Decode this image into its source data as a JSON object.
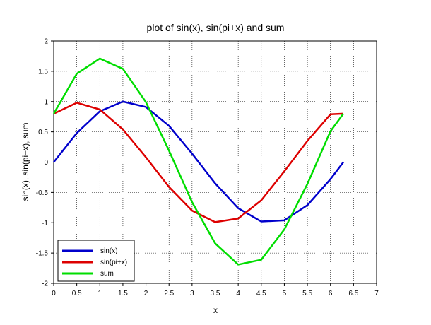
{
  "chart_data": {
    "type": "line",
    "title": "plot of sin(x), sin(pi+x) and sum",
    "xlabel": "x",
    "ylabel": "sin(x), sin(pi+x), sum",
    "xlim": [
      0,
      7
    ],
    "ylim": [
      -2,
      2
    ],
    "grid": true,
    "legend_placement": "bottom-left",
    "x_ticks": [
      "0",
      "0.5",
      "1",
      "1.5",
      "2",
      "2.5",
      "3",
      "3.5",
      "4",
      "4.5",
      "5",
      "5.5",
      "6",
      "6.5",
      "7"
    ],
    "y_ticks": [
      "-2",
      "-1.5",
      "-1",
      "-0.5",
      "0",
      "0.5",
      "1",
      "1.5",
      "2"
    ],
    "x": [
      0,
      0.5,
      1.0,
      1.5,
      2.0,
      2.5,
      3.0,
      3.5,
      4.0,
      4.5,
      5.0,
      5.5,
      6.0,
      6.28
    ],
    "series": [
      {
        "name": "sin(x)",
        "color": "#0000cc",
        "values": [
          0,
          0.48,
          0.84,
          1.0,
          0.91,
          0.6,
          0.14,
          -0.35,
          -0.76,
          -0.98,
          -0.96,
          -0.71,
          -0.28,
          0
        ]
      },
      {
        "name": "sin(pi+x)",
        "color": "#dd0000",
        "values": [
          0.8,
          0.98,
          0.87,
          0.54,
          0.08,
          -0.41,
          -0.8,
          -0.99,
          -0.93,
          -0.63,
          -0.15,
          0.35,
          0.79,
          0.8
        ]
      },
      {
        "name": "sum",
        "color": "#00dd00",
        "values": [
          0.8,
          1.46,
          1.71,
          1.54,
          0.99,
          0.19,
          -0.66,
          -1.34,
          -1.69,
          -1.61,
          -1.11,
          -0.36,
          0.51,
          0.8
        ]
      }
    ]
  }
}
